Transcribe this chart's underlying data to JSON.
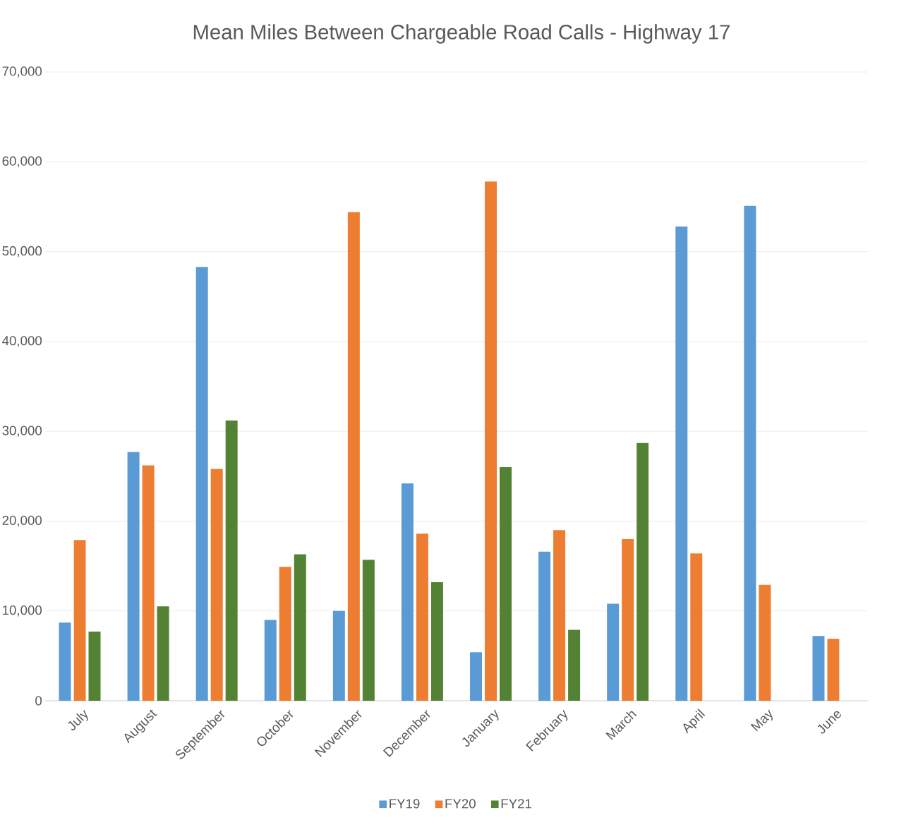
{
  "chart_data": {
    "type": "bar",
    "title": "Mean Miles Between Chargeable Road Calls - Highway 17",
    "categories": [
      "July",
      "August",
      "September",
      "October",
      "November",
      "December",
      "January",
      "February",
      "March",
      "April",
      "May",
      "June"
    ],
    "series": [
      {
        "name": "FY19",
        "color": "#5b9bd5",
        "values": [
          8700,
          27700,
          48300,
          9000,
          10000,
          24200,
          5400,
          16600,
          10800,
          52800,
          55100,
          7200
        ]
      },
      {
        "name": "FY20",
        "color": "#ed7d31",
        "values": [
          17900,
          26200,
          25800,
          14900,
          54400,
          18600,
          57800,
          19000,
          18000,
          16400,
          12900,
          6900
        ]
      },
      {
        "name": "FY21",
        "color": "#548235",
        "values": [
          7700,
          10500,
          31200,
          16300,
          15700,
          13200,
          26000,
          7900,
          28700,
          null,
          null,
          null
        ]
      }
    ],
    "ylim": [
      0,
      70000
    ],
    "yticks": [
      {
        "value": 0,
        "label": "0"
      },
      {
        "value": 10000,
        "label": "10,000"
      },
      {
        "value": 20000,
        "label": "20,000"
      },
      {
        "value": 30000,
        "label": "30,000"
      },
      {
        "value": 40000,
        "label": "40,000"
      },
      {
        "value": 50000,
        "label": "50,000"
      },
      {
        "value": 60000,
        "label": "60,000"
      },
      {
        "value": 70000,
        "label": "70,000"
      }
    ],
    "grid": "y",
    "legend": "bottom"
  }
}
